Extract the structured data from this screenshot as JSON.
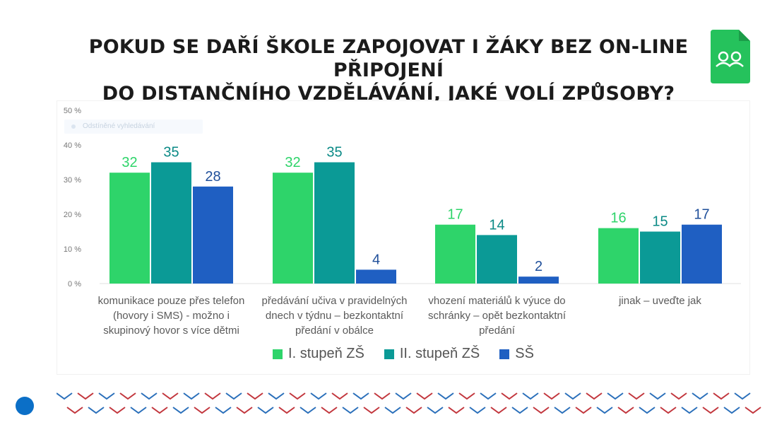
{
  "title_line1": "POKUD SE DAŘÍ ŠKOLE ZAPOJOVAT I ŽÁKY BEZ ON-LINE PŘIPOJENÍ",
  "title_line2": "DO DISTANČNÍHO VZDĚLÁVÁNÍ, JAKÉ VOLÍ ZPŮSOBY?",
  "search_placeholder": "Odstíněné vyhledávání",
  "colors": {
    "series1": "#2ed46a",
    "series2": "#0b9a96",
    "series3": "#1f5fc2",
    "label1": "#2ed46a",
    "label2": "#0b8a86",
    "label3": "#1f4f9a",
    "logo": "#25c25c",
    "chevron_red": "#c2363d",
    "chevron_blue": "#2a6fba"
  },
  "chart_data": {
    "type": "bar",
    "categories": [
      "komunikace pouze přes telefon (hovory i SMS) - možno i skupinový hovor s více dětmi",
      "předávání učiva v pravidelných dnech v týdnu – bezkontaktní předání v obálce",
      "vhození materiálů k výuce do schránky – opět bezkontaktní předání",
      "jinak – uveďte jak"
    ],
    "category_lines": [
      [
        "komunikace pouze přes telefon",
        "(hovory i SMS) - možno i",
        "skupinový hovor s více dětmi"
      ],
      [
        "předávání učiva v pravidelných",
        "dnech v týdnu – bezkontaktní",
        "předání v obálce"
      ],
      [
        "vhození materiálů k výuce do",
        "schránky – opět bezkontaktní",
        "předání"
      ],
      [
        "jinak – uveďte jak"
      ]
    ],
    "series": [
      {
        "name": "I. stupeň ZŠ",
        "values": [
          32,
          32,
          17,
          16
        ]
      },
      {
        "name": "II. stupeň ZŠ",
        "values": [
          35,
          35,
          14,
          15
        ]
      },
      {
        "name": "SŠ",
        "values": [
          28,
          4,
          2,
          17
        ]
      }
    ],
    "yticks": [
      "0 %",
      "10 %",
      "20 %",
      "30 %",
      "40 %",
      "50 %"
    ],
    "ylim": [
      0,
      50
    ],
    "grid": false,
    "legend_position": "bottom"
  }
}
